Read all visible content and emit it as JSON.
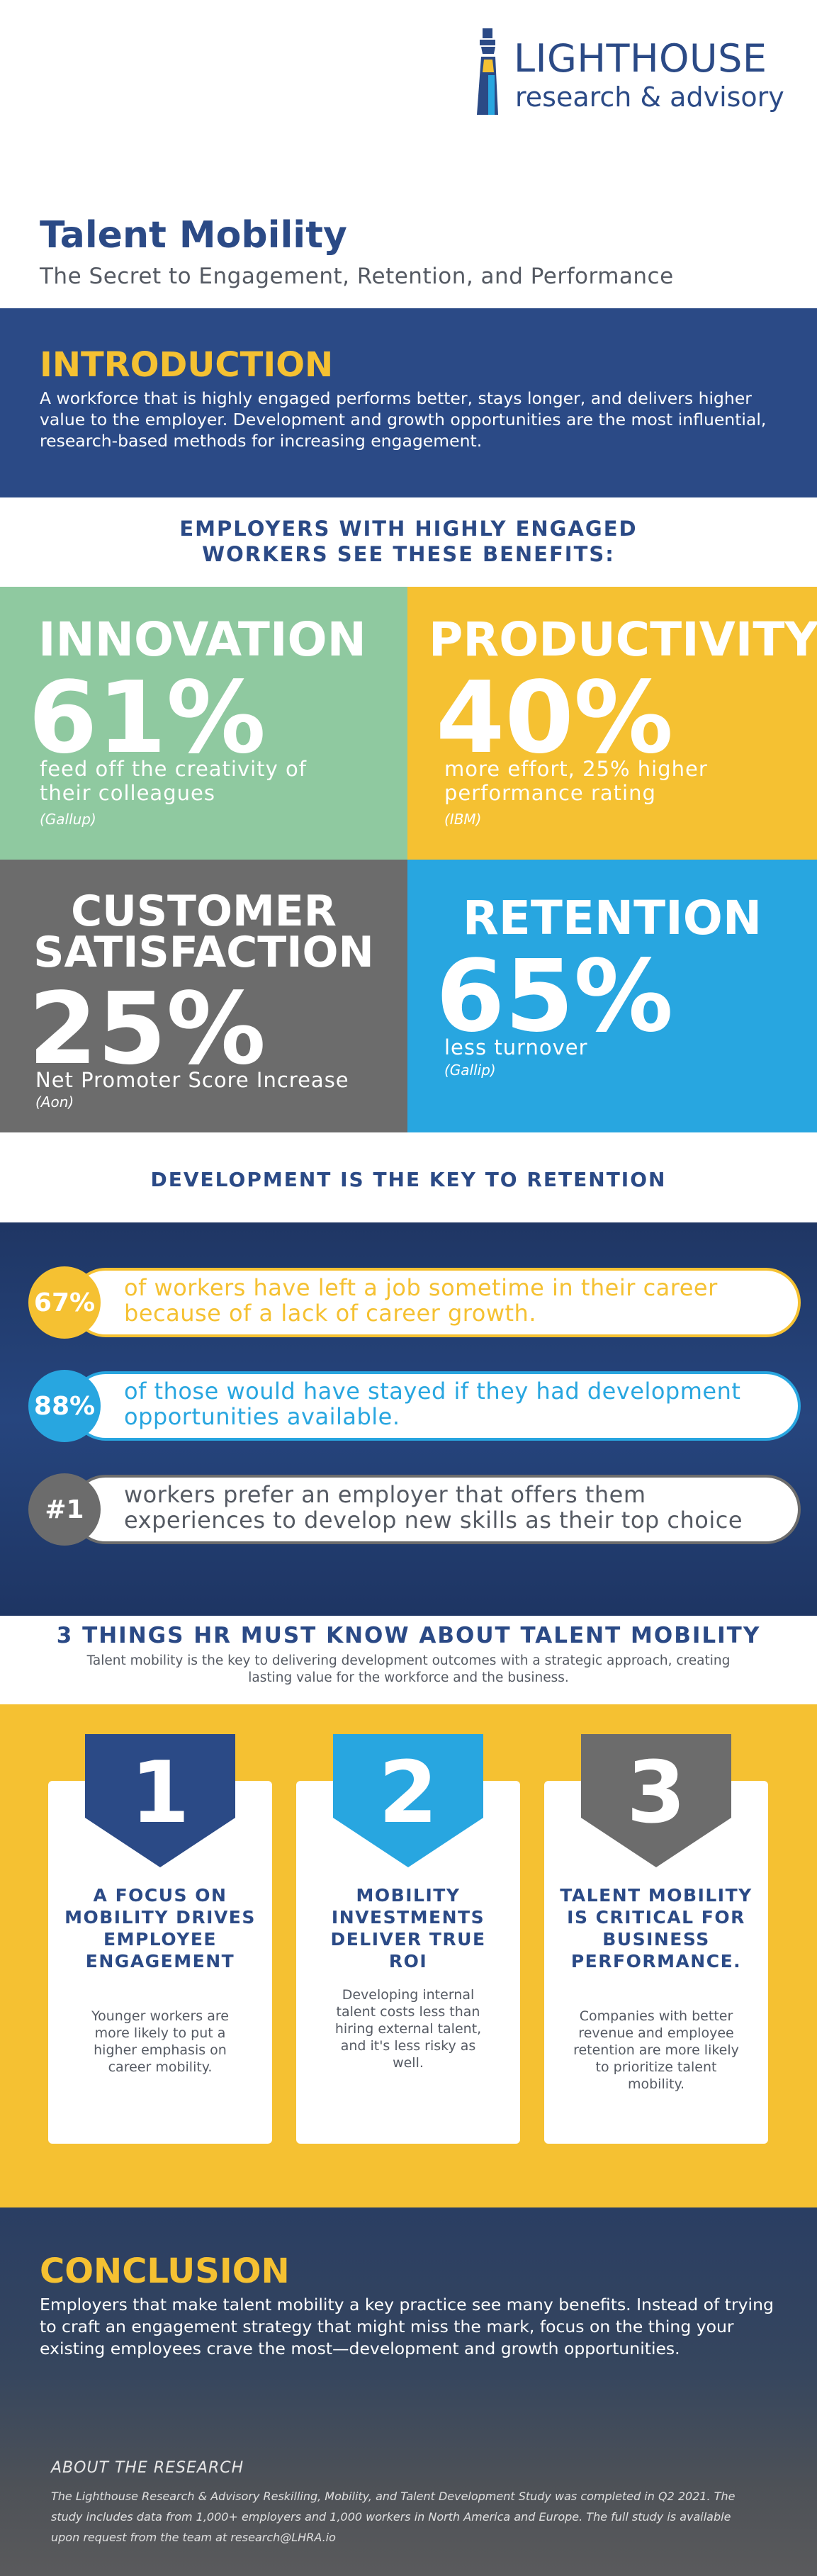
{
  "brand": {
    "name": "LIGHTHOUSE",
    "tagline": "research & advisory"
  },
  "page": {
    "title": "Talent Mobility",
    "subtitle": "The Secret to Engagement, Retention, and Performance"
  },
  "intro": {
    "heading": "INTRODUCTION",
    "body": "A workforce that is highly engaged performs better, stays longer, and delivers higher value to the employer. Development and growth opportunities are the most influential, research-based methods for increasing engagement."
  },
  "benefits": {
    "heading_line1": "EMPLOYERS WITH HIGHLY ENGAGED",
    "heading_line2": "WORKERS SEE THESE BENEFITS:",
    "items": [
      {
        "category": "INNOVATION",
        "stat": "61%",
        "desc": "feed off the creativity of their colleagues",
        "source": "(Gallup)",
        "color": "#8fc9a0"
      },
      {
        "category": "PRODUCTIVITY",
        "stat": "40%",
        "desc": "more effort, 25% higher performance rating",
        "source": "(IBM)",
        "color": "#f5c132"
      },
      {
        "category_line1": "CUSTOMER",
        "category_line2": "SATISFACTION",
        "stat": "25%",
        "desc": "Net Promoter Score Increase",
        "source": "(Aon)",
        "color": "#6c6c6c"
      },
      {
        "category": "RETENTION",
        "stat": "65%",
        "desc": "less turnover",
        "source": "(Gallip)",
        "color": "#28a6e0"
      }
    ]
  },
  "development": {
    "heading": "DEVELOPMENT IS THE KEY TO RETENTION",
    "items": [
      {
        "badge": "67%",
        "text": "of workers have left a job sometime in their career because of a lack of career growth.",
        "color": "#f5c132"
      },
      {
        "badge": "88%",
        "text": "of those would have stayed if they had development opportunities available.",
        "color": "#28a6e0"
      },
      {
        "badge": "#1",
        "text": "workers prefer an employer that offers them experiences to develop new skills as their top choice",
        "color": "#6c6c6c"
      }
    ]
  },
  "things": {
    "heading": "3 THINGS HR MUST KNOW ABOUT TALENT MOBILITY",
    "body": "Talent mobility is the key to delivering development outcomes with a strategic approach, creating lasting value for the workforce and the business.",
    "cards": [
      {
        "num": "1",
        "title": "A FOCUS ON MOBILITY DRIVES EMPLOYEE ENGAGEMENT",
        "body": "Younger workers are more likely to put a higher emphasis on career mobility.",
        "color": "#2b4a86"
      },
      {
        "num": "2",
        "title": "MOBILITY INVESTMENTS DELIVER TRUE ROI",
        "body": "Developing internal talent costs less than hiring external talent, and it's less risky as well.",
        "color": "#28a6e0"
      },
      {
        "num": "3",
        "title": "TALENT MOBILITY IS CRITICAL FOR BUSINESS PERFORMANCE.",
        "body": "Companies with better revenue and employee retention are more likely to prioritize talent mobility.",
        "color": "#6c6c6c"
      }
    ]
  },
  "conclusion": {
    "heading": "CONCLUSION",
    "body": "Employers that make talent mobility a key practice see many benefits. Instead of trying to craft an engagement strategy that might miss the mark, focus on the thing your existing employees crave the most—development and growth opportunities."
  },
  "about": {
    "heading": "ABOUT THE RESEARCH",
    "body": "The Lighthouse Research & Advisory Reskilling, Mobility, and Talent Development Study was completed in Q2 2021. The study includes data from 1,000+ employers and 1,000 workers in North America and Europe. The full study is available upon request from the team at research@LHRA.io"
  }
}
